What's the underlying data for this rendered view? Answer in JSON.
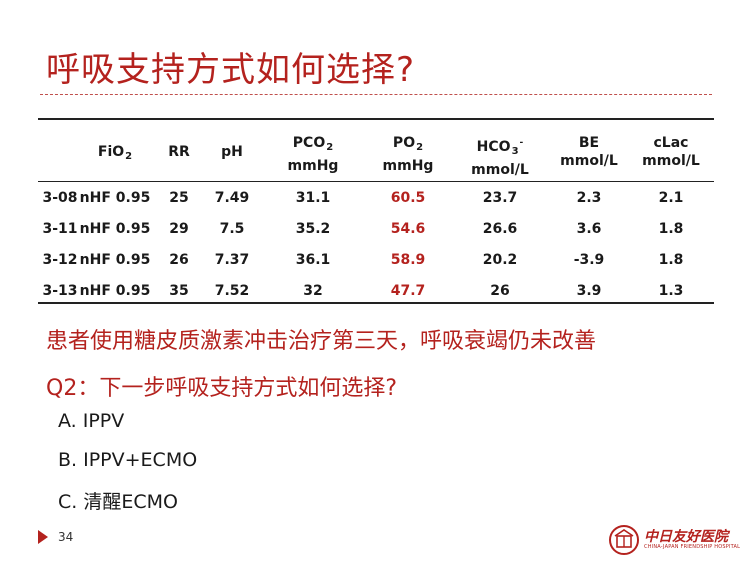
{
  "slide": {
    "title": "呼吸支持方式如何选择?",
    "page_number": "34"
  },
  "table": {
    "headers": [
      {
        "main": "",
        "sub": "",
        "sup": "",
        "unit": ""
      },
      {
        "main": "FiO",
        "sub": "2",
        "sup": "",
        "unit": ""
      },
      {
        "main": "RR",
        "sub": "",
        "sup": "",
        "unit": ""
      },
      {
        "main": "pH",
        "sub": "",
        "sup": "",
        "unit": ""
      },
      {
        "main": "PCO",
        "sub": "2",
        "sup": "",
        "unit": "mmHg"
      },
      {
        "main": "PO",
        "sub": "2",
        "sup": "",
        "unit": "mmHg"
      },
      {
        "main": "HCO",
        "sub": "3",
        "sup": "-",
        "unit": "mmol/L"
      },
      {
        "main": "BE",
        "sub": "",
        "sup": "",
        "unit": "mmol/L"
      },
      {
        "main": "cLac",
        "sub": "",
        "sup": "",
        "unit": "mmol/L"
      }
    ],
    "rows": [
      [
        "3-08",
        "nHF 0.95",
        "25",
        "7.49",
        "31.1",
        "60.5",
        "23.7",
        "2.3",
        "2.1"
      ],
      [
        "3-11",
        "nHF 0.95",
        "29",
        "7.5",
        "35.2",
        "54.6",
        "26.6",
        "3.6",
        "1.8"
      ],
      [
        "3-12",
        "nHF 0.95",
        "26",
        "7.37",
        "36.1",
        "58.9",
        "20.2",
        "-3.9",
        "1.8"
      ],
      [
        "3-13",
        "nHF 0.95",
        "35",
        "7.52",
        "32",
        "47.7",
        "26",
        "3.9",
        "1.3"
      ]
    ],
    "highlight_column": 5,
    "highlight_color": "#b4221e"
  },
  "statement": "患者使用糖皮质激素冲击治疗第三天，呼吸衰竭仍未改善",
  "question": "Q2：下一步呼吸支持方式如何选择?",
  "options": [
    "A. IPPV",
    "B. IPPV+ECMO",
    "C. 清醒ECMO"
  ],
  "logo": {
    "name": "中日友好医院",
    "subtitle": "CHINA-JAPAN FRIENDSHIP HOSPITAL",
    "icon": "hospital-emblem-icon"
  }
}
